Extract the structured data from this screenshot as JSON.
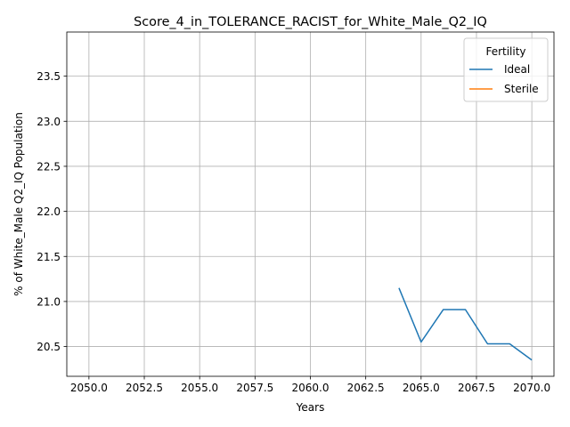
{
  "chart_data": {
    "type": "line",
    "title": "Score_4_in_TOLERANCE_RACIST_for_White_Male_Q2_IQ",
    "xlabel": "Years",
    "ylabel": "% of White_Male Q2_IQ Population",
    "xlim": [
      2049.0,
      2071.0
    ],
    "ylim": [
      20.17,
      23.99
    ],
    "xticks": [
      2050.0,
      2052.5,
      2055.0,
      2057.5,
      2060.0,
      2062.5,
      2065.0,
      2067.5,
      2070.0
    ],
    "xtick_labels": [
      "2050.0",
      "2052.5",
      "2055.0",
      "2057.5",
      "2060.0",
      "2062.5",
      "2065.0",
      "2067.5",
      "2070.0"
    ],
    "yticks": [
      20.5,
      21.0,
      21.5,
      22.0,
      22.5,
      23.0,
      23.5
    ],
    "ytick_labels": [
      "20.5",
      "21.0",
      "21.5",
      "22.0",
      "22.5",
      "23.0",
      "23.5"
    ],
    "grid": true,
    "legend": {
      "title": "Fertility",
      "placement": "top-right"
    },
    "series": [
      {
        "name": "Ideal",
        "color": "#1f77b4",
        "x": [
          2064,
          2065,
          2066,
          2067,
          2068,
          2069,
          2070
        ],
        "y": [
          21.15,
          20.55,
          20.91,
          20.91,
          20.53,
          20.53,
          20.35
        ]
      },
      {
        "name": "Sterile",
        "color": "#ff7f0e",
        "x": [],
        "y": []
      }
    ]
  }
}
